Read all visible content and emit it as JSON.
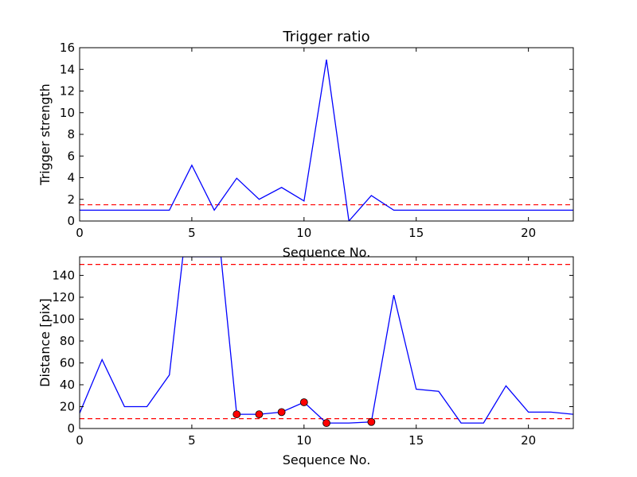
{
  "chart_data": [
    {
      "type": "line",
      "title": "Trigger ratio",
      "xlabel": "Sequence No.",
      "ylabel": "Trigger strength",
      "xlim": [
        0,
        22
      ],
      "ylim": [
        0,
        16
      ],
      "xticks": [
        0,
        5,
        10,
        15,
        20
      ],
      "yticks": [
        0,
        2,
        4,
        6,
        8,
        10,
        12,
        14,
        16
      ],
      "grid": false,
      "series": [
        {
          "color": "#0000ff",
          "style": "solid",
          "x": [
            0,
            1,
            2,
            3,
            4,
            5,
            6,
            7,
            8,
            9,
            10,
            11,
            12,
            13,
            14,
            15,
            16,
            17,
            18,
            19,
            20,
            21,
            22
          ],
          "y": [
            1,
            1,
            1,
            1,
            1,
            5.15,
            1,
            3.95,
            2,
            3.1,
            1.85,
            14.9,
            0,
            2.35,
            1,
            1,
            1,
            1,
            1,
            1,
            1,
            1,
            1
          ]
        }
      ],
      "hlines": [
        {
          "y": 1.5,
          "color": "#ff0000",
          "style": "dashed"
        }
      ]
    },
    {
      "type": "line",
      "title": "",
      "xlabel": "Sequence No.",
      "ylabel": "Distance [pix]",
      "xlim": [
        0,
        22
      ],
      "ylim": [
        0,
        157
      ],
      "xticks": [
        0,
        5,
        10,
        15,
        20
      ],
      "yticks": [
        0,
        20,
        40,
        60,
        80,
        100,
        120,
        140
      ],
      "grid": false,
      "series": [
        {
          "color": "#0000ff",
          "style": "solid",
          "x": [
            0,
            1,
            2,
            3,
            4,
            4.6,
            6.3,
            7,
            8,
            9,
            10,
            11,
            12,
            13,
            14,
            15,
            16,
            17,
            18,
            19,
            20,
            21,
            22
          ],
          "y": [
            14,
            63,
            20,
            20,
            49,
            157,
            157,
            13,
            13,
            15,
            24,
            5,
            5,
            6,
            122,
            36,
            34,
            5,
            5,
            39,
            15,
            15,
            13
          ]
        }
      ],
      "markers": {
        "color": "#ff0000",
        "x": [
          7,
          8,
          9,
          10,
          11,
          13
        ],
        "y": [
          13,
          13,
          15,
          24,
          5,
          6
        ]
      },
      "hlines": [
        {
          "y": 150,
          "color": "#ff0000",
          "style": "dashed"
        },
        {
          "y": 9,
          "color": "#ff0000",
          "style": "dashed"
        }
      ]
    }
  ]
}
